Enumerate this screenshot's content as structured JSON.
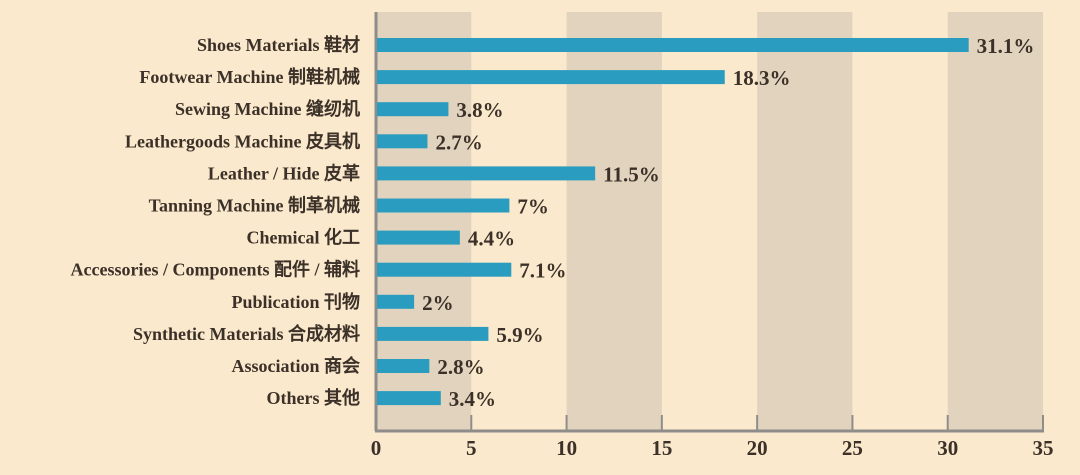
{
  "chart_data": {
    "type": "bar",
    "orientation": "horizontal",
    "title": "",
    "xlabel": "",
    "ylabel": "",
    "categories": [
      "Shoes Materials 鞋材",
      "Footwear Machine 制鞋机械",
      "Sewing Machine 缝纫机",
      "Leathergoods Machine 皮具机",
      "Leather / Hide  皮革",
      "Tanning Machine 制革机械",
      "Chemical 化工",
      "Accessories / Components  配件 / 辅料",
      "Publication 刊物",
      "Synthetic Materials 合成材料",
      "Association 商会",
      "Others 其他"
    ],
    "values": [
      31.1,
      18.3,
      3.8,
      2.7,
      11.5,
      7,
      4.4,
      7.1,
      2,
      5.9,
      2.8,
      3.4
    ],
    "value_labels": [
      "31.1%",
      "18.3%",
      "3.8%",
      "2.7%",
      "11.5%",
      "7%",
      "4.4%",
      "7.1%",
      "2%",
      "5.9%",
      "2.8%",
      "3.4%"
    ],
    "xlim": [
      0,
      35
    ],
    "xticks": [
      0,
      5,
      10,
      15,
      20,
      25,
      30,
      35
    ],
    "grid": "alternating vertical bands",
    "colors": {
      "bar": "#2a9cbf",
      "band": "#e1d3be",
      "background": "#fbe9cd",
      "axis": "#8f8d8a",
      "text": "#3b3128"
    }
  }
}
